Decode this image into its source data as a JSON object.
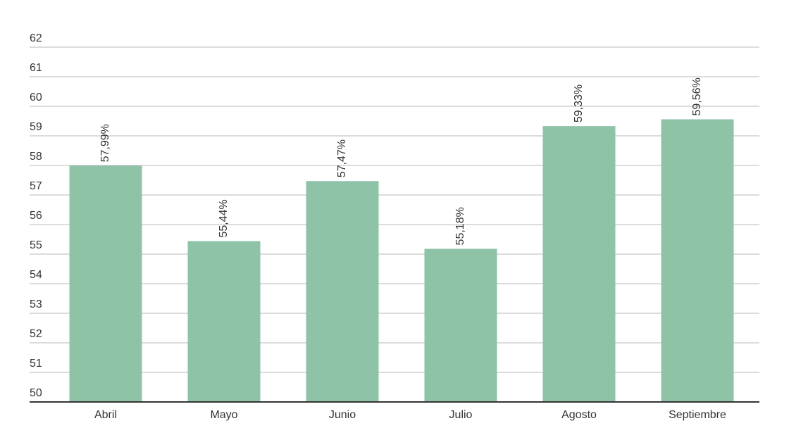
{
  "chart_data": {
    "type": "bar",
    "categories": [
      "Abril",
      "Mayo",
      "Junio",
      "Julio",
      "Agosto",
      "Septiembre"
    ],
    "values": [
      57.99,
      55.44,
      57.47,
      55.18,
      59.33,
      59.56
    ],
    "value_labels": [
      "57,99%",
      "55,44%",
      "57,47%",
      "55,18%",
      "59,33%",
      "59,56%"
    ],
    "color": "#8fc3a7",
    "ylim": [
      50,
      62
    ],
    "yticks": [
      50,
      51,
      52,
      53,
      54,
      55,
      56,
      57,
      58,
      59,
      60,
      61,
      62
    ],
    "grid": true
  }
}
